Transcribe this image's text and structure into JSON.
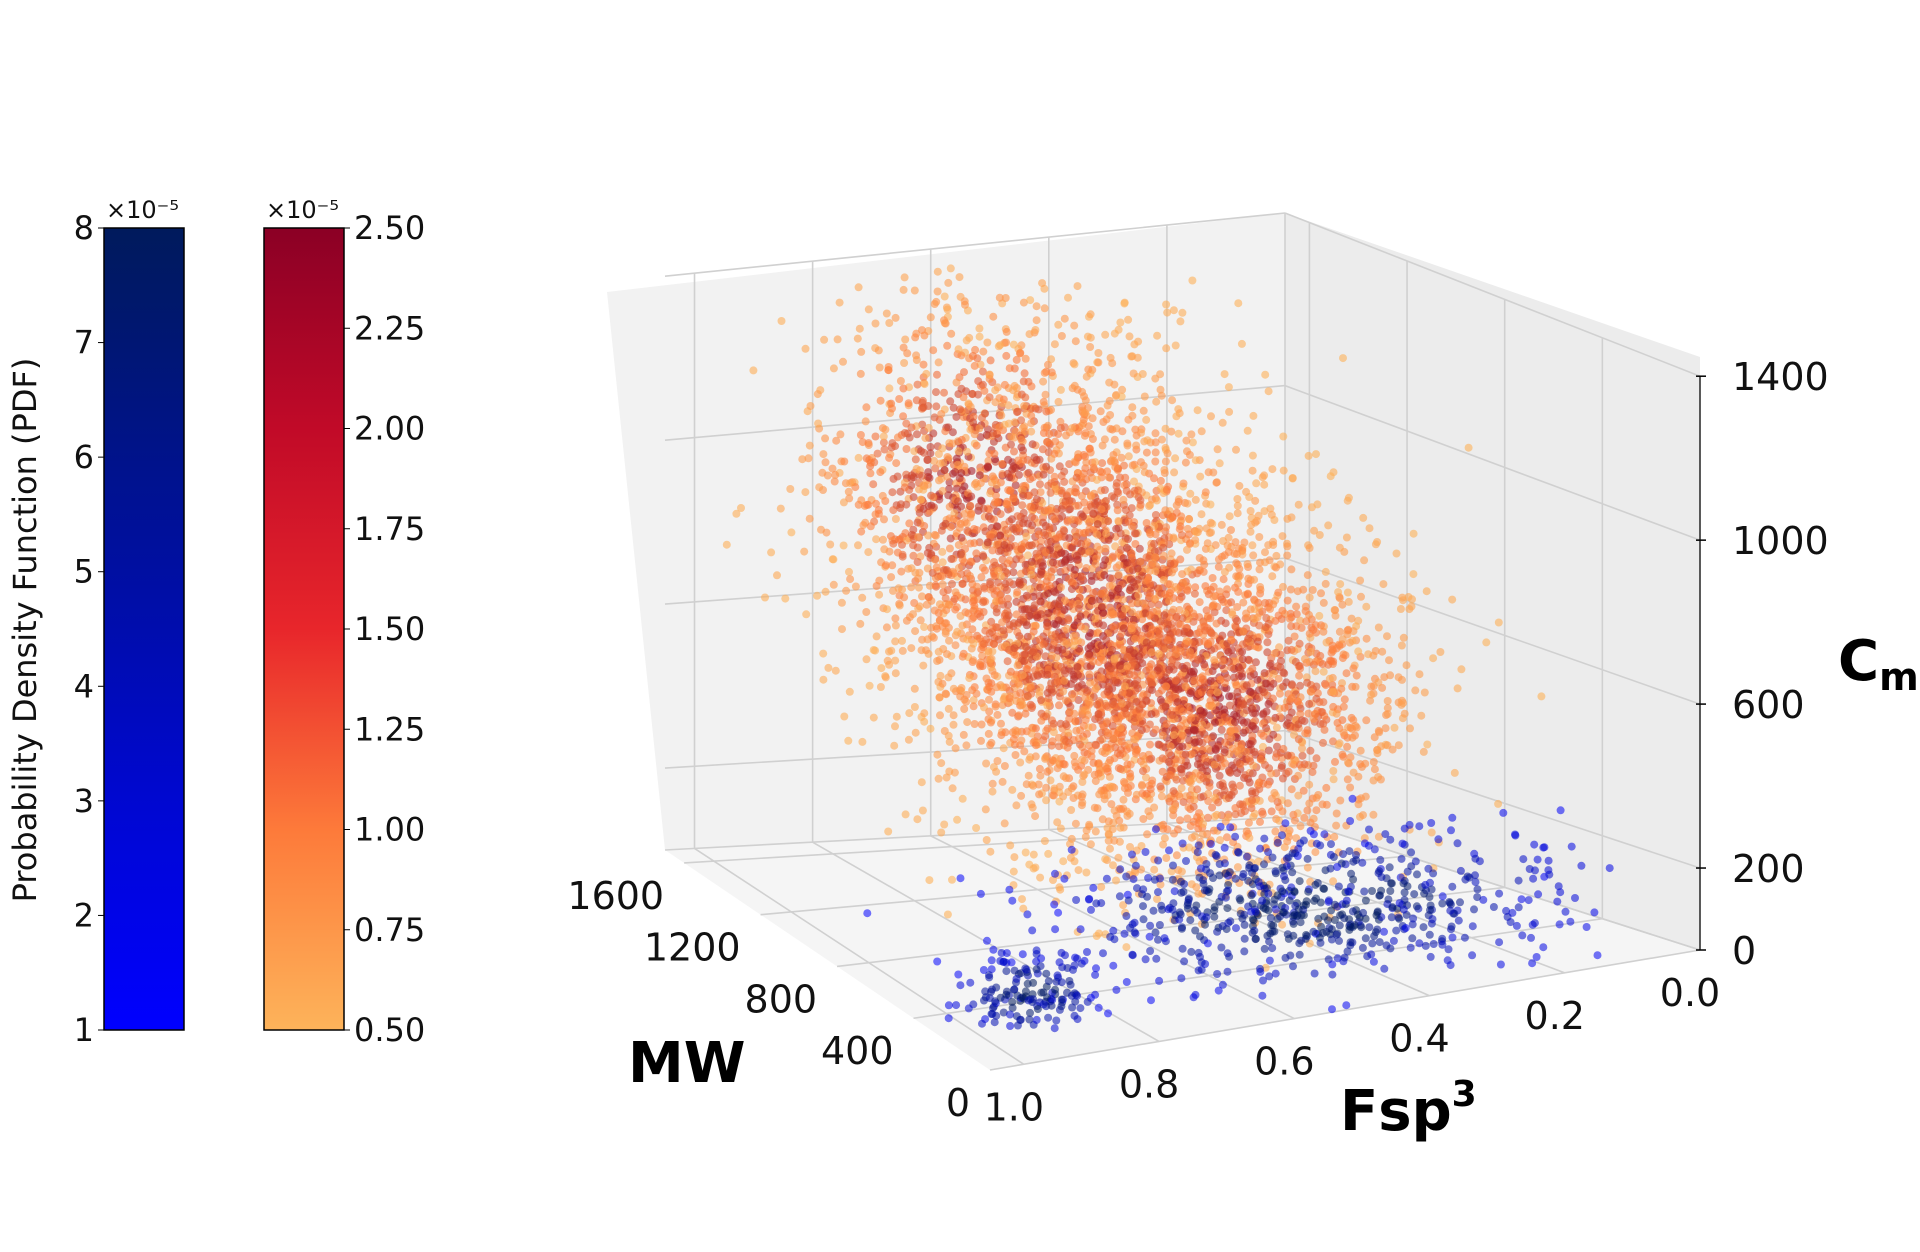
{
  "chart_data": {
    "type": "scatter",
    "projection": "3d",
    "axes": {
      "x": {
        "label": "MW",
        "ticks": [
          "0",
          "400",
          "800",
          "1200",
          "1600"
        ],
        "range": [
          0,
          1700
        ]
      },
      "y": {
        "label_main": "Fsp",
        "label_sup": "3",
        "ticks": [
          "0.0",
          "0.2",
          "0.4",
          "0.6",
          "0.8",
          "1.0"
        ],
        "range": [
          0,
          1.05
        ]
      },
      "z": {
        "label_main": "C",
        "label_sub": "m",
        "ticks": [
          "0",
          "200",
          "600",
          "1000",
          "1400"
        ],
        "range": [
          0,
          1400
        ]
      }
    },
    "grid": true,
    "series": [
      {
        "colormap": "orange-red",
        "color_low": "#fdb35a",
        "color_high": "#8b0025",
        "approx_count": 9000,
        "clusters": [
          {
            "mw_mean": 1100,
            "mw_sd": 220,
            "fsp3_mean": 0.55,
            "fsp3_sd": 0.12,
            "cm_mean": 700,
            "cm_sd": 260,
            "weight": 0.45
          },
          {
            "mw_mean": 800,
            "mw_sd": 200,
            "fsp3_mean": 0.45,
            "fsp3_sd": 0.12,
            "cm_mean": 520,
            "cm_sd": 200,
            "weight": 0.35
          },
          {
            "mw_mean": 1350,
            "mw_sd": 160,
            "fsp3_mean": 0.65,
            "fsp3_sd": 0.12,
            "cm_mean": 950,
            "cm_sd": 220,
            "weight": 0.2
          }
        ]
      },
      {
        "colormap": "blue",
        "color_low": "#0000ff",
        "color_high": "#001a5c",
        "approx_count": 1400,
        "clusters": [
          {
            "mw_mean": 550,
            "mw_sd": 220,
            "fsp3_mean": 0.4,
            "fsp3_sd": 0.18,
            "cm_mean": 90,
            "cm_sd": 70,
            "weight": 0.8
          },
          {
            "mw_mean": 300,
            "mw_sd": 60,
            "fsp3_mean": 0.9,
            "fsp3_sd": 0.05,
            "cm_mean": 60,
            "cm_sd": 50,
            "weight": 0.2
          }
        ]
      }
    ],
    "colorbars": [
      {
        "name": "blue",
        "ticks": [
          "1",
          "2",
          "3",
          "4",
          "5",
          "6",
          "7",
          "8"
        ],
        "multiplier": "×10⁻⁵",
        "colors": [
          "#0000ff",
          "#001a5c"
        ],
        "label": "Probability Density Function (PDF)"
      },
      {
        "name": "red",
        "ticks": [
          "0.50",
          "0.75",
          "1.00",
          "1.25",
          "1.50",
          "1.75",
          "2.00",
          "2.25",
          "2.50"
        ],
        "multiplier": "×10⁻⁵",
        "colors": [
          "#fdb35a",
          "#fd7a3a",
          "#e8262b",
          "#c10a28",
          "#8b0025"
        ]
      }
    ]
  }
}
